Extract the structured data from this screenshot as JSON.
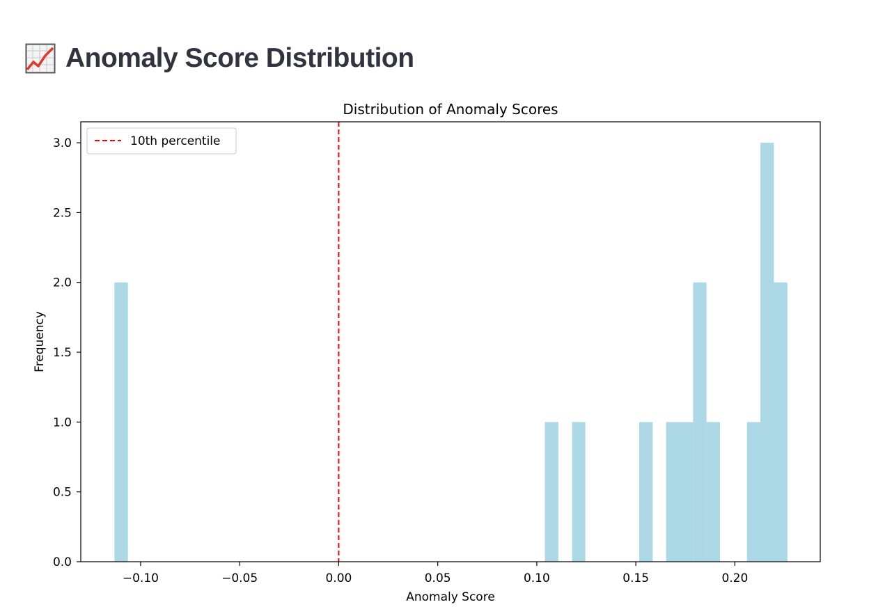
{
  "page": {
    "title": "Anomaly Score Distribution",
    "title_icon": "chart-increasing-icon"
  },
  "chart_data": {
    "type": "bar",
    "title": "Distribution of Anomaly Scores",
    "xlabel": "Anomaly Score",
    "ylabel": "Frequency",
    "xlim": [
      -0.1302,
      0.2431
    ],
    "ylim": [
      0,
      3.15
    ],
    "xticks": [
      -0.1,
      -0.05,
      0.0,
      0.05,
      0.1,
      0.15,
      0.2
    ],
    "xtick_labels": [
      "−0.10",
      "−0.05",
      "0.00",
      "0.05",
      "0.10",
      "0.15",
      "0.20"
    ],
    "yticks": [
      0.0,
      0.5,
      1.0,
      1.5,
      2.0,
      2.5,
      3.0
    ],
    "ytick_labels": [
      "0.0",
      "0.5",
      "1.0",
      "1.5",
      "2.0",
      "2.5",
      "3.0"
    ],
    "bar_color": "#add8e6",
    "bins": [
      {
        "x0": -0.1132,
        "x1": -0.1064,
        "count": 2
      },
      {
        "x0": 0.1041,
        "x1": 0.1109,
        "count": 1
      },
      {
        "x0": 0.1178,
        "x1": 0.1245,
        "count": 1
      },
      {
        "x0": 0.1517,
        "x1": 0.1585,
        "count": 1
      },
      {
        "x0": 0.1653,
        "x1": 0.1721,
        "count": 1
      },
      {
        "x0": 0.1721,
        "x1": 0.1789,
        "count": 1
      },
      {
        "x0": 0.1789,
        "x1": 0.1857,
        "count": 2
      },
      {
        "x0": 0.1857,
        "x1": 0.1925,
        "count": 1
      },
      {
        "x0": 0.2061,
        "x1": 0.2129,
        "count": 1
      },
      {
        "x0": 0.2129,
        "x1": 0.2197,
        "count": 3
      },
      {
        "x0": 0.2197,
        "x1": 0.2265,
        "count": 2
      }
    ],
    "reference_lines": [
      {
        "name": "10th percentile",
        "x": 0.0,
        "color": "#ff0000",
        "style": "dashed"
      }
    ],
    "legend": {
      "position": "top-left",
      "entries": [
        "10th percentile"
      ]
    },
    "grid": false
  }
}
